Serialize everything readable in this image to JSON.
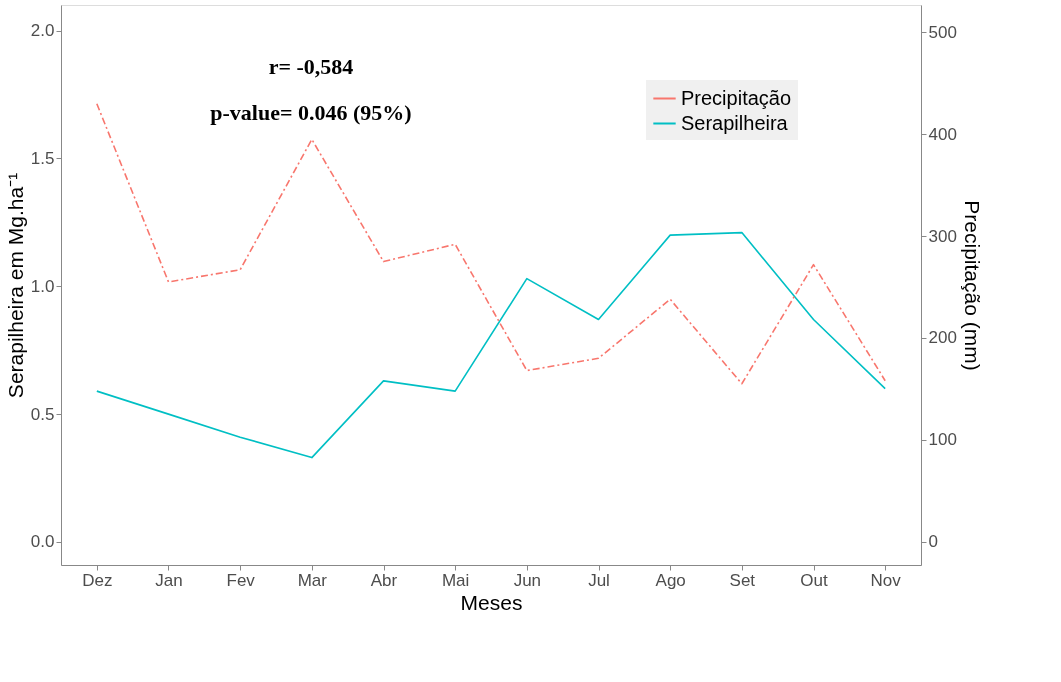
{
  "chart_data": {
    "type": "line",
    "xlabel": "Meses",
    "ylabel": "Serapilheira em Mg.ha⁻¹",
    "y2label": "Precipitação (mm)",
    "categories": [
      "Dez",
      "Jan",
      "Fev",
      "Mar",
      "Abr",
      "Mai",
      "Jun",
      "Jul",
      "Ago",
      "Set",
      "Out",
      "Nov"
    ],
    "series": [
      {
        "name": "Precipitação",
        "color": "#f8766d",
        "axis": "y2",
        "line_style": "dashed",
        "values": [
          430,
          255,
          267,
          395,
          275,
          292,
          168,
          180,
          238,
          155,
          272,
          158
        ]
      },
      {
        "name": "Serapilheira",
        "color": "#00bfc4",
        "line_style": "solid",
        "values": [
          0.59,
          0.5,
          0.41,
          0.33,
          0.63,
          0.59,
          1.03,
          0.87,
          1.2,
          1.21,
          0.87,
          0.6
        ]
      }
    ],
    "ylim": [
      -0.09,
      2.1
    ],
    "yticks": [
      {
        "value": 0,
        "label": "0.0"
      },
      0.5,
      {
        "value": 1,
        "label": "1.0"
      },
      1.5,
      {
        "value": 2,
        "label": "2.0"
      }
    ],
    "y2lim": [
      -23,
      527
    ],
    "y2ticks": [
      0,
      100,
      200,
      300,
      400,
      500
    ],
    "annotations": [
      "r= -0,584",
      "p-value= 0.046 (95%)"
    ],
    "grid": false,
    "legend": "top right",
    "marker": "none"
  }
}
